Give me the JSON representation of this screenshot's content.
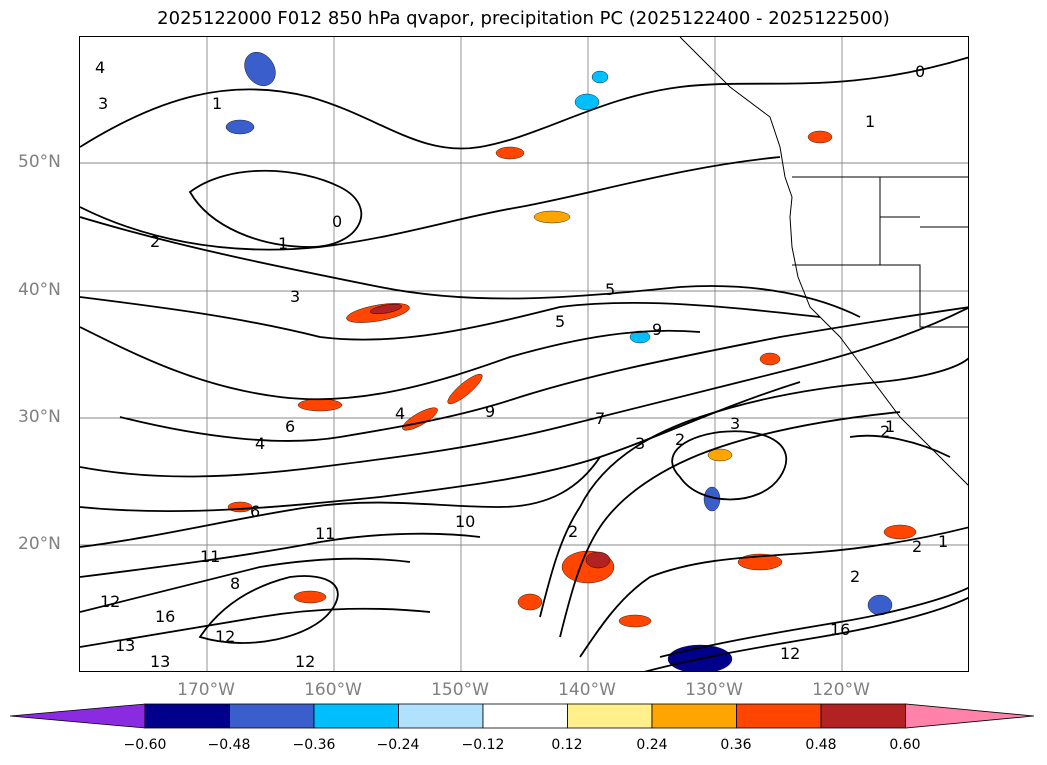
{
  "title": "2025122000 F012 850 hPa qvapor, precipitation PC (2025122400 - 2025122500)",
  "map": {
    "lat_labels": [
      "50°N",
      "40°N",
      "30°N",
      "20°N"
    ],
    "lon_labels": [
      "170°W",
      "160°W",
      "150°W",
      "140°W",
      "130°W",
      "120°W"
    ],
    "contour_labels": [
      "0",
      "1",
      "2",
      "3",
      "4",
      "5",
      "6",
      "7",
      "8",
      "9",
      "10",
      "11",
      "12",
      "13",
      "16"
    ],
    "contour_color": "#000000",
    "grid_color": "#808080",
    "label_color": "#808080"
  },
  "colorbar": {
    "ticks": [
      "−0.60",
      "−0.48",
      "−0.36",
      "−0.24",
      "−0.12",
      "0.12",
      "0.24",
      "0.36",
      "0.48",
      "0.60"
    ],
    "colors": [
      "#8a2be2",
      "#00008b",
      "#3a5fcd",
      "#00bfff",
      "#b0e2ff",
      "#ffffff",
      "#fff08c",
      "#ffa500",
      "#ff4500",
      "#b22222",
      "#ff82ab"
    ]
  }
}
